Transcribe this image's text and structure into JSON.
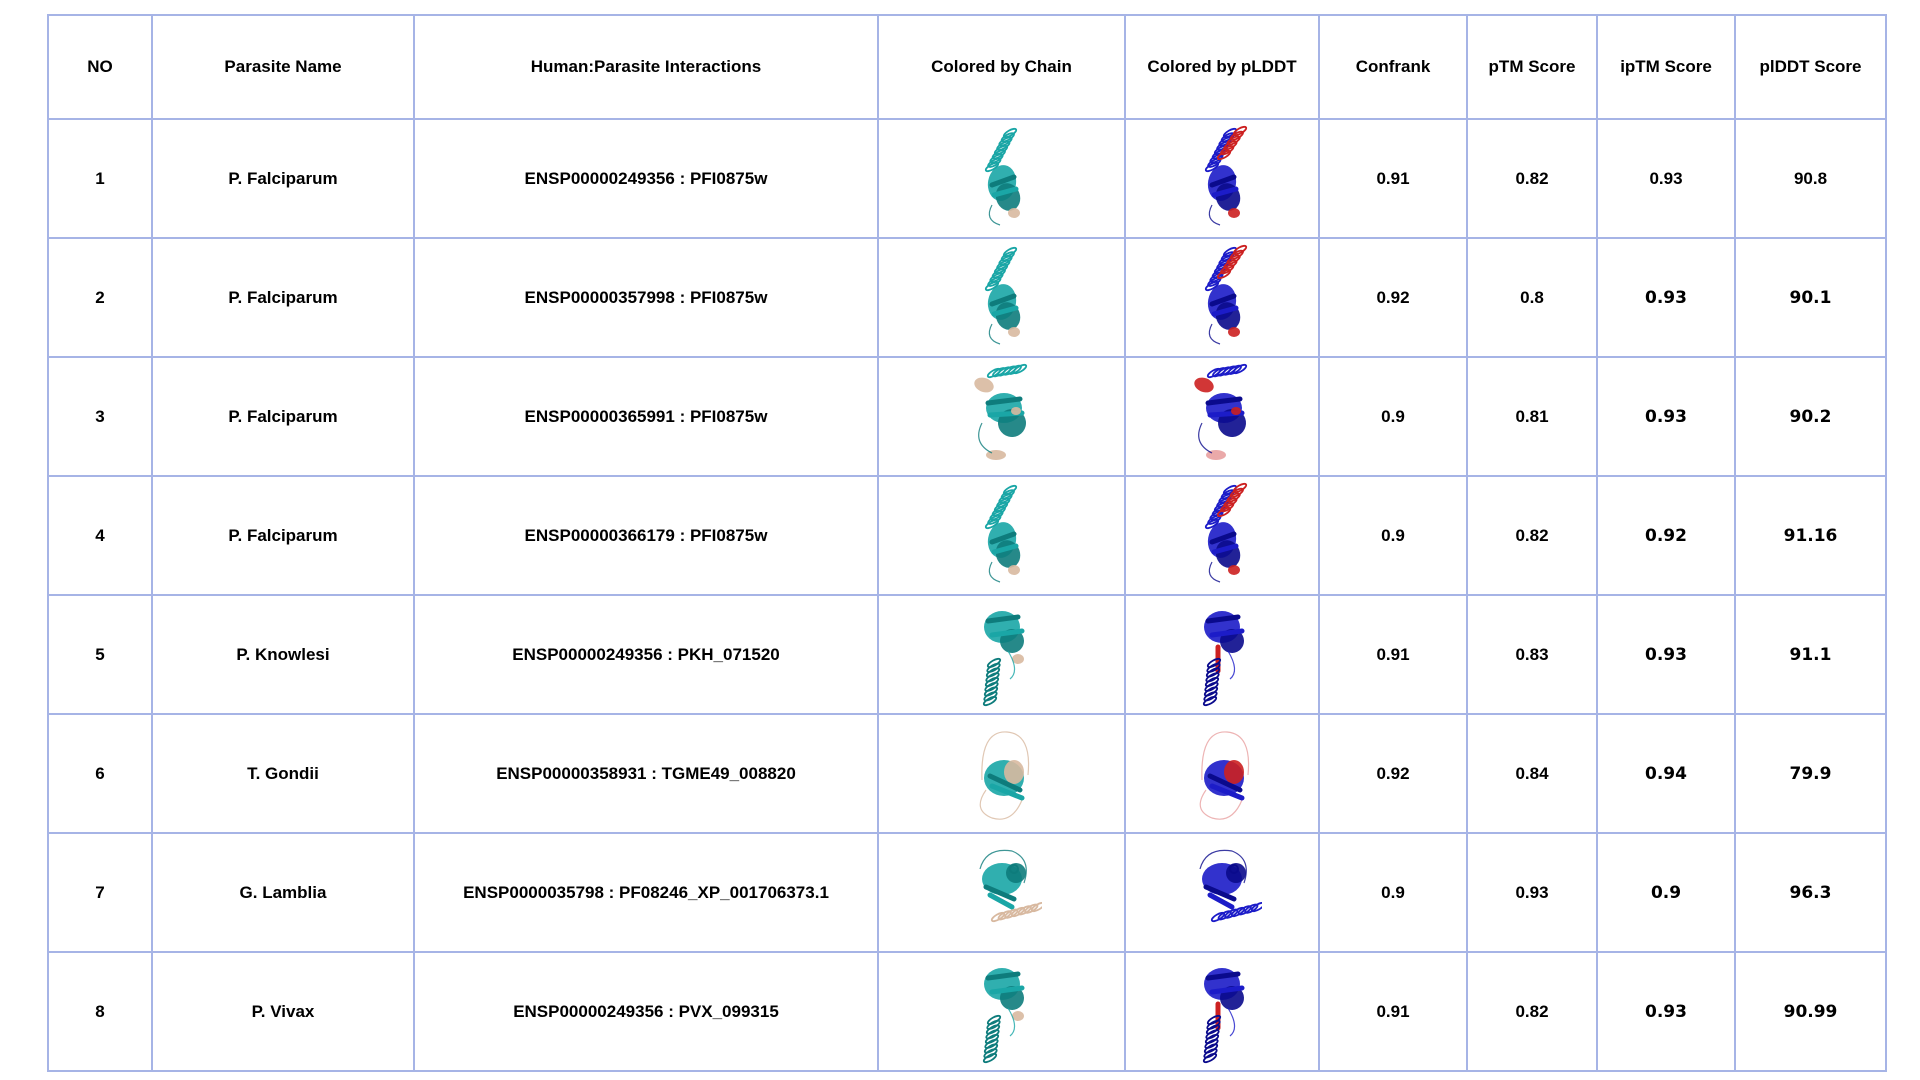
{
  "colors": {
    "grid": "#a6b4e6",
    "chain_main": "#1aa6a6",
    "chain_dark": "#0e7c7c",
    "chain_partner": "#d8b9a0",
    "plddt_high": "#1c1cc8",
    "plddt_dark": "#0a0a8c",
    "plddt_low": "#cc2020",
    "plddt_mid": "#e8a0a0"
  },
  "table": {
    "headers": {
      "no": "NO",
      "parasite": "Parasite Name",
      "interaction": "Human:Parasite Interactions",
      "chain": "Colored by Chain",
      "plddt_img": "Colored by pLDDT",
      "confrank": "Confrank",
      "ptm": "pTM Score",
      "iptm": "ipTM Score",
      "plddt": "plDDT Score"
    },
    "rows": [
      {
        "no": "1",
        "parasite": "P. Falciparum",
        "interaction": "ENSP00000249356 : PFI0875w",
        "confrank": "0.91",
        "ptm": "0.82",
        "iptm": "0.93",
        "plddt": "90.8",
        "shape": "tall"
      },
      {
        "no": "2",
        "parasite": "P. Falciparum",
        "interaction": "ENSP00000357998 : PFI0875w",
        "confrank": "0.92",
        "ptm": "0.8",
        "iptm": "0.93",
        "plddt": "90.1",
        "shape": "tall"
      },
      {
        "no": "3",
        "parasite": "P. Falciparum",
        "interaction": "ENSP00000365991 : PFI0875w",
        "confrank": "0.9",
        "ptm": "0.81",
        "iptm": "0.93",
        "plddt": "90.2",
        "shape": "wide"
      },
      {
        "no": "4",
        "parasite": "P. Falciparum",
        "interaction": "ENSP00000366179 : PFI0875w",
        "confrank": "0.9",
        "ptm": "0.82",
        "iptm": "0.92",
        "plddt": "91.16",
        "shape": "tall"
      },
      {
        "no": "5",
        "parasite": "P. Knowlesi",
        "interaction": "ENSP00000249356 : PKH_071520",
        "confrank": "0.91",
        "ptm": "0.83",
        "iptm": "0.93",
        "plddt": "91.1",
        "shape": "inverted"
      },
      {
        "no": "6",
        "parasite": "T. Gondii",
        "interaction": "ENSP00000358931 : TGME49_008820",
        "confrank": "0.92",
        "ptm": "0.84",
        "iptm": "0.94",
        "plddt": "79.9",
        "shape": "loops"
      },
      {
        "no": "7",
        "parasite": "G. Lamblia",
        "interaction": "ENSP0000035798 : PF08246_XP_001706373.1",
        "confrank": "0.9",
        "ptm": "0.93",
        "iptm": "0.9",
        "plddt": "96.3",
        "shape": "compact"
      },
      {
        "no": "8",
        "parasite": "P. Vivax",
        "interaction": "ENSP00000249356 : PVX_099315",
        "confrank": "0.91",
        "ptm": "0.82",
        "iptm": "0.93",
        "plddt": "90.99",
        "shape": "inverted"
      }
    ]
  }
}
